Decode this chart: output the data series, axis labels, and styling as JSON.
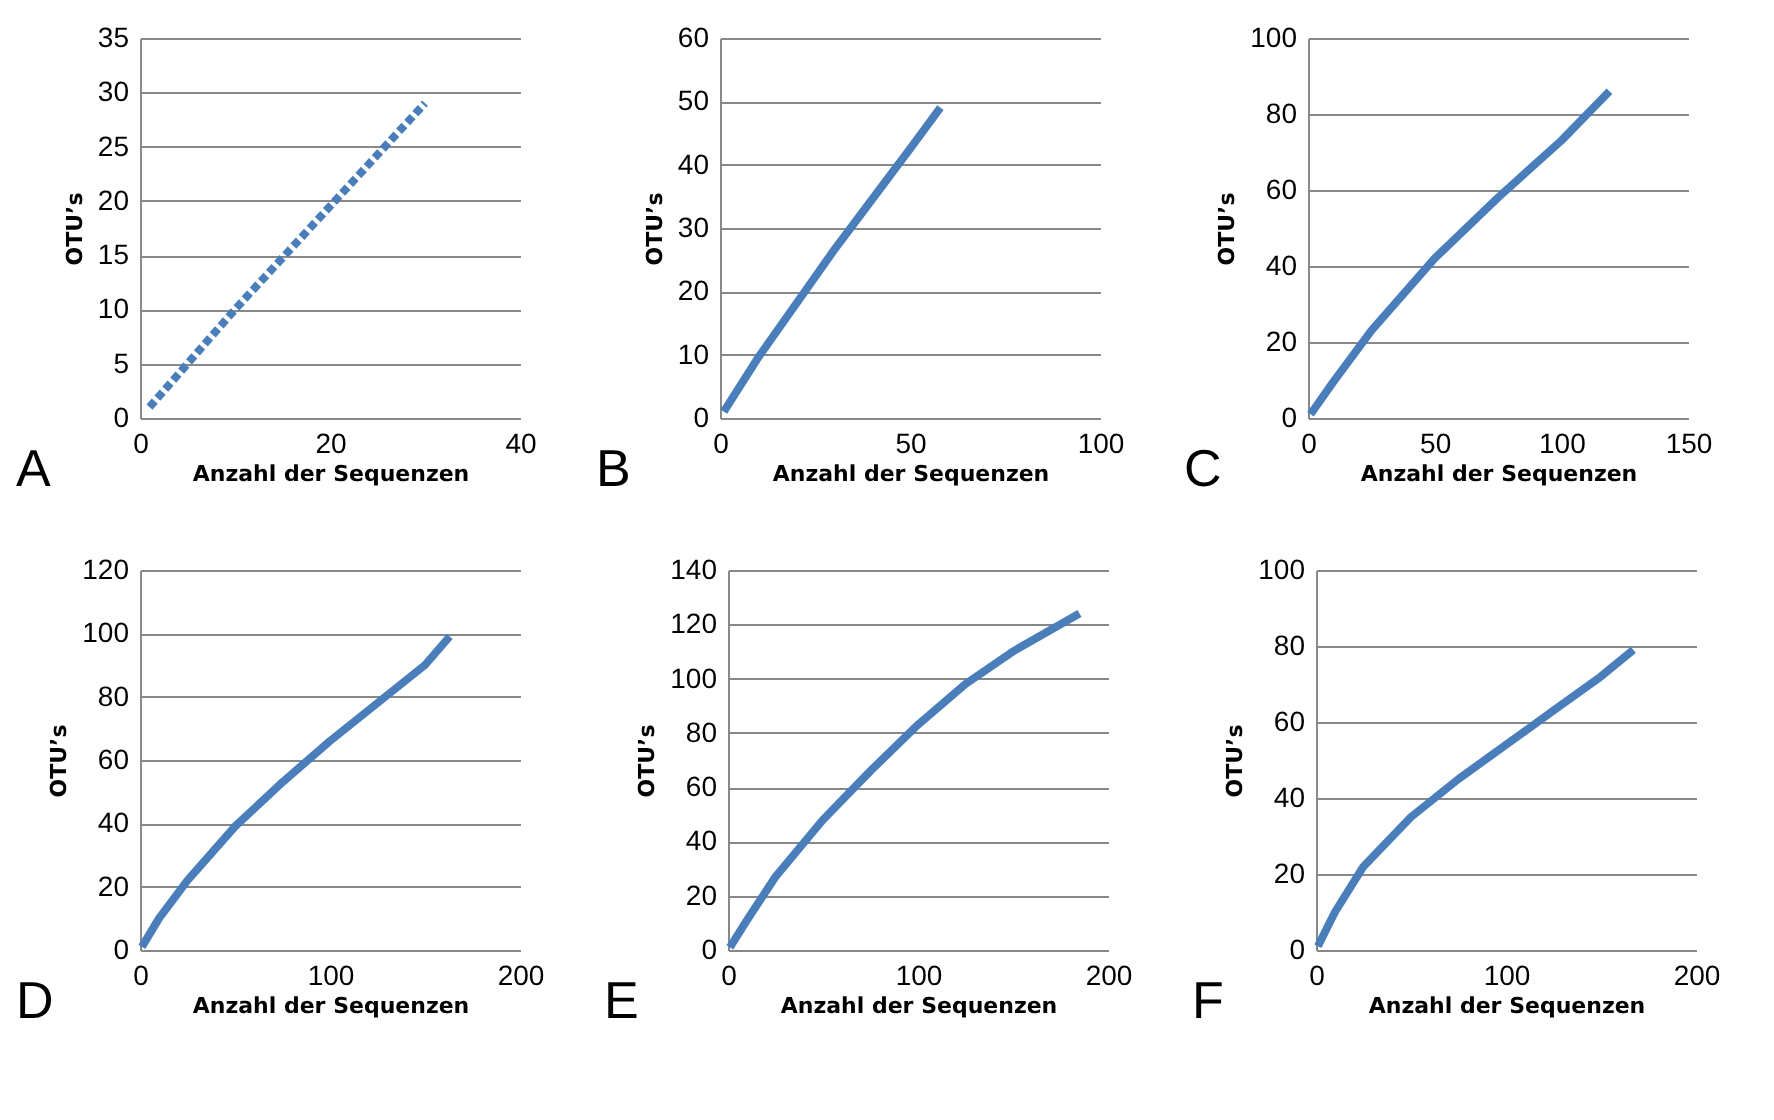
{
  "chart_data": [
    {
      "type": "line",
      "x": [
        1,
        10,
        20,
        30
      ],
      "series": [
        {
          "color": "#4a7ebb",
          "values": [
            1,
            10,
            19.5,
            29
          ]
        }
      ],
      "xlim": [
        0,
        40
      ],
      "xticks": [
        0,
        20,
        40
      ],
      "ylim": [
        0,
        35
      ],
      "yticks": [
        0,
        5,
        10,
        15,
        20,
        25,
        30,
        35
      ],
      "xlabel": "Anzahl der Sequenzen",
      "ylabel": "OTU’s",
      "grid": "y",
      "line_style": "dotted",
      "annotations": [
        "A"
      ]
    },
    {
      "type": "line",
      "x": [
        1,
        10,
        20,
        30,
        40,
        50,
        58
      ],
      "series": [
        {
          "color": "#4a7ebb",
          "values": [
            1,
            9.5,
            18,
            26.5,
            34.5,
            42.5,
            49
          ]
        }
      ],
      "xlim": [
        0,
        100
      ],
      "xticks": [
        0,
        50,
        100
      ],
      "ylim": [
        0,
        60
      ],
      "yticks": [
        0,
        10,
        20,
        30,
        40,
        50,
        60
      ],
      "xlabel": "Anzahl der Sequenzen",
      "ylabel": "OTU’s",
      "grid": "y",
      "line_style": "solid",
      "annotations": [
        "B"
      ]
    },
    {
      "type": "line",
      "x": [
        1,
        10,
        25,
        50,
        75,
        100,
        119
      ],
      "series": [
        {
          "color": "#4a7ebb",
          "values": [
            1,
            9.5,
            23,
            42,
            58,
            73,
            86
          ]
        }
      ],
      "xlim": [
        0,
        150
      ],
      "xticks": [
        0,
        50,
        100,
        150
      ],
      "ylim": [
        0,
        100
      ],
      "yticks": [
        0,
        20,
        40,
        60,
        80,
        100
      ],
      "xlabel": "Anzahl der Sequenzen",
      "ylabel": "OTU’s",
      "grid": "y",
      "line_style": "solid",
      "annotations": [
        "C"
      ]
    },
    {
      "type": "line",
      "x": [
        1,
        10,
        25,
        50,
        75,
        100,
        125,
        150,
        163
      ],
      "series": [
        {
          "color": "#4a7ebb",
          "values": [
            1,
            10,
            22,
            39,
            53,
            66,
            78,
            90,
            99
          ]
        }
      ],
      "xlim": [
        0,
        200
      ],
      "xticks": [
        0,
        100,
        200
      ],
      "ylim": [
        0,
        120
      ],
      "yticks": [
        0,
        20,
        40,
        60,
        80,
        100,
        120
      ],
      "xlabel": "Anzahl der Sequenzen",
      "ylabel": "OTU’s",
      "grid": "y",
      "line_style": "solid",
      "annotations": [
        "D"
      ]
    },
    {
      "type": "line",
      "x": [
        1,
        10,
        25,
        50,
        75,
        100,
        125,
        150,
        185
      ],
      "series": [
        {
          "color": "#4a7ebb",
          "values": [
            1,
            11,
            27,
            48,
            66,
            83,
            98,
            110,
            124
          ]
        }
      ],
      "xlim": [
        0,
        200
      ],
      "xticks": [
        0,
        100,
        200
      ],
      "ylim": [
        0,
        140
      ],
      "yticks": [
        0,
        20,
        40,
        60,
        80,
        100,
        120,
        140
      ],
      "xlabel": "Anzahl der Sequenzen",
      "ylabel": "OTU’s",
      "grid": "y",
      "line_style": "solid",
      "annotations": [
        "E"
      ]
    },
    {
      "type": "line",
      "x": [
        1,
        10,
        25,
        50,
        75,
        100,
        125,
        150,
        167
      ],
      "series": [
        {
          "color": "#4a7ebb",
          "values": [
            1,
            10,
            22,
            35,
            45,
            54,
            63,
            72,
            79
          ]
        }
      ],
      "xlim": [
        0,
        200
      ],
      "xticks": [
        0,
        100,
        200
      ],
      "ylim": [
        0,
        100
      ],
      "yticks": [
        0,
        20,
        40,
        60,
        80,
        100
      ],
      "xlabel": "Anzahl der Sequenzen",
      "ylabel": "OTU’s",
      "grid": "y",
      "line_style": "solid",
      "annotations": [
        "F"
      ]
    }
  ]
}
